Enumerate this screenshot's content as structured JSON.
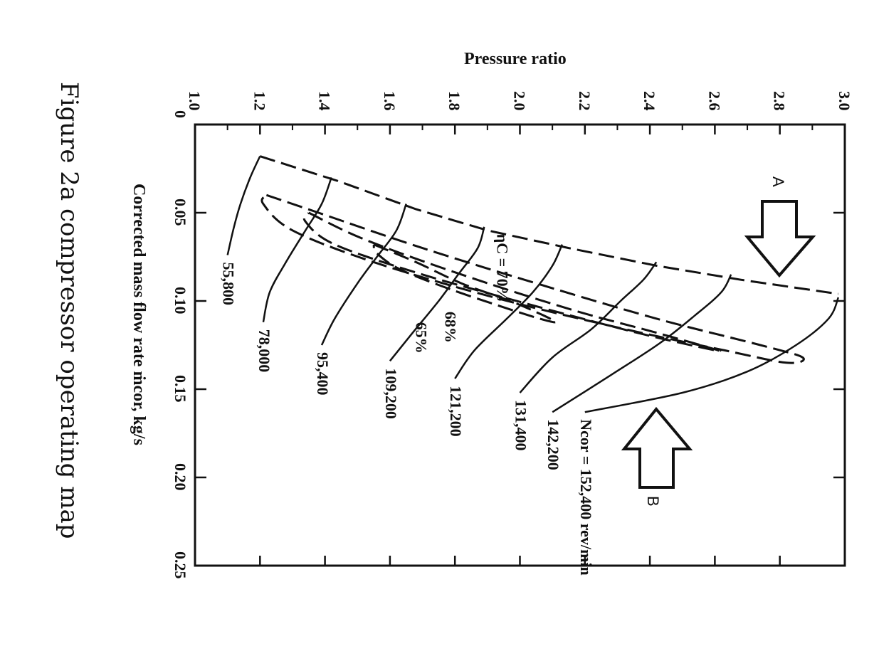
{
  "caption": "Figure 2a compressor operating map",
  "chart_data": {
    "type": "line",
    "xlabel": "Corrected mass flow rate ṁcor, kg/s",
    "ylabel": "Pressure ratio",
    "xlim": [
      0,
      0.25
    ],
    "ylim": [
      1.0,
      3.0
    ],
    "x_ticks": [
      "0",
      "0.05",
      "0.10",
      "0.15",
      "0.20",
      "0.25"
    ],
    "y_ticks": [
      "1.0",
      "1.2",
      "1.4",
      "1.6",
      "1.8",
      "2.0",
      "2.2",
      "2.4",
      "2.6",
      "2.8",
      "3.0"
    ],
    "speed_unit": "rev/min",
    "speed_prefix": "Ncor =",
    "speed_lines": [
      {
        "label": "55,800",
        "points": [
          [
            0.018,
            1.2
          ],
          [
            0.03,
            1.17
          ],
          [
            0.045,
            1.14
          ],
          [
            0.058,
            1.12
          ],
          [
            0.074,
            1.1
          ]
        ]
      },
      {
        "label": "78,000",
        "points": [
          [
            0.03,
            1.42
          ],
          [
            0.045,
            1.39
          ],
          [
            0.06,
            1.34
          ],
          [
            0.078,
            1.28
          ],
          [
            0.095,
            1.23
          ],
          [
            0.112,
            1.21
          ]
        ]
      },
      {
        "label": "95,400",
        "points": [
          [
            0.045,
            1.65
          ],
          [
            0.06,
            1.62
          ],
          [
            0.075,
            1.56
          ],
          [
            0.09,
            1.5
          ],
          [
            0.11,
            1.43
          ],
          [
            0.125,
            1.39
          ]
        ]
      },
      {
        "label": "109,200",
        "points": [
          [
            0.058,
            1.89
          ],
          [
            0.07,
            1.87
          ],
          [
            0.085,
            1.81
          ],
          [
            0.1,
            1.75
          ],
          [
            0.118,
            1.67
          ],
          [
            0.134,
            1.6
          ]
        ]
      },
      {
        "label": "121,200",
        "points": [
          [
            0.068,
            2.13
          ],
          [
            0.08,
            2.1
          ],
          [
            0.095,
            2.04
          ],
          [
            0.11,
            1.96
          ],
          [
            0.128,
            1.86
          ],
          [
            0.144,
            1.8
          ]
        ]
      },
      {
        "label": "131,400",
        "points": [
          [
            0.078,
            2.42
          ],
          [
            0.088,
            2.38
          ],
          [
            0.1,
            2.31
          ],
          [
            0.116,
            2.22
          ],
          [
            0.132,
            2.1
          ],
          [
            0.152,
            2.0
          ]
        ]
      },
      {
        "label": "142,200",
        "points": [
          [
            0.085,
            2.65
          ],
          [
            0.095,
            2.62
          ],
          [
            0.108,
            2.54
          ],
          [
            0.124,
            2.43
          ],
          [
            0.142,
            2.28
          ],
          [
            0.163,
            2.1
          ]
        ]
      },
      {
        "label": "152,400",
        "points": [
          [
            0.098,
            2.98
          ],
          [
            0.11,
            2.95
          ],
          [
            0.125,
            2.85
          ],
          [
            0.14,
            2.7
          ],
          [
            0.152,
            2.5
          ],
          [
            0.163,
            2.2
          ]
        ]
      }
    ],
    "surge_line": [
      [
        0.018,
        1.2
      ],
      [
        0.032,
        1.44
      ],
      [
        0.048,
        1.68
      ],
      [
        0.06,
        1.9
      ],
      [
        0.07,
        2.15
      ],
      [
        0.08,
        2.42
      ],
      [
        0.088,
        2.68
      ],
      [
        0.096,
        2.98
      ]
    ],
    "efficiency_contours": [
      {
        "label": "ηC = 70%",
        "points": [
          [
            0.068,
            1.55
          ],
          [
            0.078,
            1.68
          ],
          [
            0.09,
            1.82
          ],
          [
            0.1,
            1.97
          ],
          [
            0.108,
            2.07
          ],
          [
            0.112,
            2.11
          ],
          [
            0.11,
            2.06
          ],
          [
            0.103,
            1.94
          ],
          [
            0.093,
            1.78
          ],
          [
            0.082,
            1.63
          ],
          [
            0.073,
            1.56
          ],
          [
            0.068,
            1.55
          ]
        ]
      },
      {
        "label": "68%",
        "points": [
          [
            0.05,
            1.35
          ],
          [
            0.065,
            1.52
          ],
          [
            0.085,
            1.82
          ],
          [
            0.105,
            2.16
          ],
          [
            0.118,
            2.42
          ],
          [
            0.128,
            2.61
          ],
          [
            0.126,
            2.55
          ],
          [
            0.118,
            2.36
          ],
          [
            0.103,
            2.05
          ],
          [
            0.085,
            1.7
          ],
          [
            0.068,
            1.43
          ],
          [
            0.055,
            1.34
          ],
          [
            0.05,
            1.35
          ]
        ]
      },
      {
        "label": "65%",
        "points": [
          [
            0.04,
            1.22
          ],
          [
            0.05,
            1.38
          ],
          [
            0.07,
            1.7
          ],
          [
            0.09,
            2.05
          ],
          [
            0.11,
            2.42
          ],
          [
            0.125,
            2.74
          ],
          [
            0.132,
            2.87
          ],
          [
            0.135,
            2.82
          ],
          [
            0.128,
            2.63
          ],
          [
            0.115,
            2.3
          ],
          [
            0.098,
            1.92
          ],
          [
            0.078,
            1.55
          ],
          [
            0.06,
            1.3
          ],
          [
            0.045,
            1.21
          ],
          [
            0.04,
            1.22
          ]
        ]
      }
    ]
  },
  "annotations": {
    "arrow_a": "A",
    "arrow_b": "B"
  }
}
